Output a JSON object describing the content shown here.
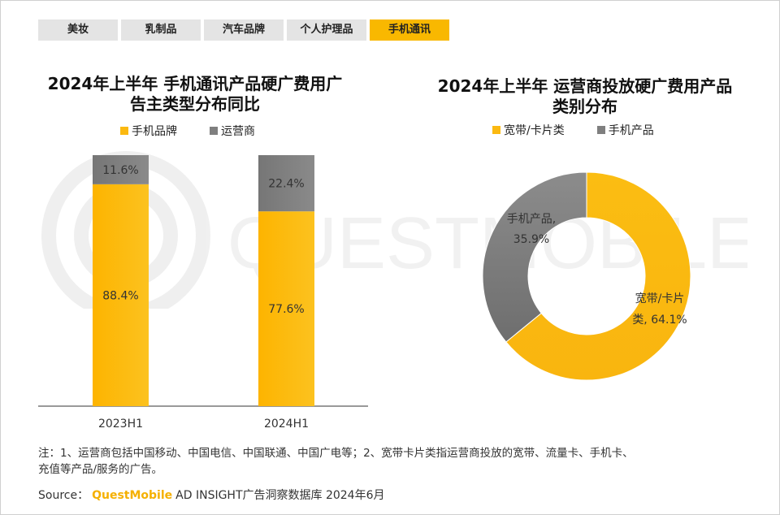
{
  "tabs": [
    {
      "label": "美妆",
      "active": false
    },
    {
      "label": "乳制品",
      "active": false
    },
    {
      "label": "汽车品牌",
      "active": false
    },
    {
      "label": "个人护理品",
      "active": false
    },
    {
      "label": "手机通讯",
      "active": true
    }
  ],
  "watermark": "QUESTMOBILE",
  "colors": {
    "accent": "#f9b800",
    "gray": "#7f7f7f"
  },
  "chart_data": [
    {
      "type": "bar",
      "stacked": true,
      "title_line1": "2024年上半年 手机通讯产品硬广费用广",
      "title_line2": "告主类型分布同比",
      "categories": [
        "2023H1",
        "2024H1"
      ],
      "series": [
        {
          "name": "手机品牌",
          "values": [
            88.4,
            77.6
          ],
          "labels": [
            "88.4%",
            "77.6%"
          ],
          "color": "#fbb911"
        },
        {
          "name": "运营商",
          "values": [
            11.6,
            22.4
          ],
          "labels": [
            "11.6%",
            "22.4%"
          ],
          "color": "#7f7f7f"
        }
      ],
      "ylim": [
        0,
        100
      ],
      "legend": "top"
    },
    {
      "type": "pie",
      "donut": true,
      "title_line1": "2024年上半年 运营商投放硬广费用产品",
      "title_line2": "类别分布",
      "series": [
        {
          "name": "宽带/卡片类",
          "value": 64.1,
          "label_line1": "宽带/卡片",
          "label_line2": "类, 64.1%",
          "color": "#fbb911"
        },
        {
          "name": "手机产品",
          "value": 35.9,
          "label_line1": "手机产品,",
          "label_line2": "35.9%",
          "color": "#7f7f7f"
        }
      ],
      "legend": "top"
    }
  ],
  "footer": {
    "note_line1": "注：1、运营商包括中国移动、中国电信、中国联通、中国广电等；2、宽带卡片类指运营商投放的宽带、流量卡、手机卡、",
    "note_line2": "充值等产品/服务的广告。",
    "source_prefix": "Source：",
    "source_brand": "QuestMobile",
    "source_rest": "AD INSIGHT广告洞察数据库 2024年6月"
  }
}
